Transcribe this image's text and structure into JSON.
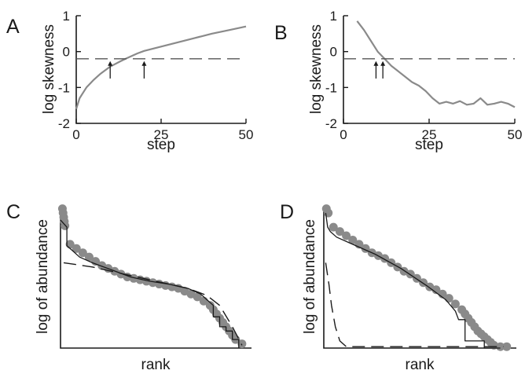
{
  "chart_data": [
    {
      "panel": "A",
      "type": "line",
      "xlabel": "step",
      "ylabel": "log skewness",
      "xlim": [
        0,
        50
      ],
      "ylim": [
        -2,
        1
      ],
      "x_ticks": [
        "0",
        "25",
        "50"
      ],
      "y_ticks": [
        "1",
        "0",
        "-1",
        "-2"
      ],
      "series": [
        {
          "style": "solid",
          "color": "#8a8a8a",
          "x": [
            0,
            1,
            2,
            3,
            5,
            7,
            10,
            13,
            15,
            18,
            20,
            25,
            30,
            35,
            40,
            45,
            50
          ],
          "y": [
            -1.6,
            -1.3,
            -1.15,
            -1.0,
            -0.8,
            -0.63,
            -0.42,
            -0.27,
            -0.18,
            -0.05,
            0.02,
            0.14,
            0.26,
            0.38,
            0.5,
            0.6,
            0.7
          ]
        },
        {
          "style": "dashed",
          "color": "#555555",
          "x": [
            0,
            50
          ],
          "y": [
            -0.2,
            -0.2
          ]
        }
      ],
      "markers": [
        {
          "type": "arrow",
          "x": 10
        },
        {
          "type": "arrow",
          "x": 20
        }
      ]
    },
    {
      "panel": "B",
      "type": "line",
      "xlabel": "step",
      "ylabel": "log skewness",
      "xlim": [
        0,
        50
      ],
      "ylim": [
        -2,
        1
      ],
      "x_ticks": [
        "0",
        "25",
        "50"
      ],
      "y_ticks": [
        "1",
        "0",
        "-1",
        "-2"
      ],
      "series": [
        {
          "style": "solid",
          "color": "#8a8a8a",
          "x": [
            4,
            6,
            8,
            10,
            12,
            14,
            16,
            18,
            20,
            22,
            24,
            26,
            28,
            30,
            32,
            34,
            36,
            38,
            40,
            42,
            44,
            46,
            48,
            50
          ],
          "y": [
            0.85,
            0.6,
            0.3,
            0.0,
            -0.2,
            -0.4,
            -0.55,
            -0.7,
            -0.85,
            -0.95,
            -1.1,
            -1.3,
            -1.45,
            -1.4,
            -1.45,
            -1.38,
            -1.48,
            -1.45,
            -1.3,
            -1.48,
            -1.45,
            -1.4,
            -1.45,
            -1.55
          ]
        },
        {
          "style": "dashed",
          "color": "#555555",
          "x": [
            0,
            50
          ],
          "y": [
            -0.2,
            -0.2
          ]
        }
      ],
      "markers": [
        {
          "type": "arrow",
          "x": 9.5
        },
        {
          "type": "arrow",
          "x": 11.5
        }
      ]
    },
    {
      "panel": "C",
      "type": "scatter",
      "xlabel": "rank",
      "ylabel": "log of abundance",
      "xlim": [
        0,
        30
      ],
      "ylim": [
        0,
        1
      ],
      "x_ticks": [],
      "y_ticks": [],
      "series": [
        {
          "style": "points",
          "color": "#8a8a8a",
          "x": [
            0.3,
            0.4,
            0.5,
            0.6,
            0.7,
            1.5,
            2.5,
            3.5,
            4.5,
            5.5,
            6.5,
            7.5,
            8.5,
            9.5,
            10.5,
            11.5,
            12.5,
            13.5,
            14.5,
            15.5,
            16.5,
            17.5,
            18.5,
            19.5,
            20.5,
            21.5,
            22.5,
            23.5,
            24,
            24.5,
            25,
            25.5,
            26,
            26.5,
            27,
            27.5,
            28.5
          ],
          "y": [
            0.98,
            0.95,
            0.92,
            0.89,
            0.86,
            0.73,
            0.7,
            0.67,
            0.64,
            0.61,
            0.58,
            0.56,
            0.54,
            0.52,
            0.5,
            0.49,
            0.48,
            0.47,
            0.46,
            0.45,
            0.44,
            0.43,
            0.42,
            0.4,
            0.38,
            0.36,
            0.33,
            0.3,
            0.27,
            0.24,
            0.21,
            0.18,
            0.15,
            0.12,
            0.09,
            0.06,
            0.03
          ]
        },
        {
          "style": "step",
          "color": "#1a1a1a",
          "x": [
            0,
            1,
            1,
            2,
            3,
            5,
            8,
            11,
            14,
            17,
            20,
            22,
            23,
            24,
            24,
            25,
            25,
            26,
            26,
            27,
            27,
            28,
            28
          ],
          "y": [
            0.9,
            0.85,
            0.72,
            0.68,
            0.64,
            0.6,
            0.55,
            0.5,
            0.47,
            0.45,
            0.42,
            0.38,
            0.34,
            0.3,
            0.22,
            0.22,
            0.15,
            0.15,
            0.12,
            0.12,
            0.06,
            0.06,
            0.0
          ]
        },
        {
          "style": "dashed",
          "color": "#1a1a1a",
          "x": [
            0.5,
            5,
            10,
            15,
            20,
            23,
            25,
            27,
            28.5
          ],
          "y": [
            0.6,
            0.57,
            0.52,
            0.47,
            0.42,
            0.37,
            0.3,
            0.15,
            0.02
          ]
        }
      ]
    },
    {
      "panel": "D",
      "type": "scatter",
      "xlabel": "rank",
      "ylabel": "log of abundance",
      "xlim": [
        0,
        30
      ],
      "ylim": [
        0,
        1
      ],
      "x_ticks": [],
      "y_ticks": [],
      "series": [
        {
          "style": "points",
          "color": "#8a8a8a",
          "x": [
            0.4,
            0.7,
            1.5,
            2.5,
            3.5,
            4.5,
            5.5,
            6.5,
            7.5,
            8.5,
            9.5,
            10.5,
            11.5,
            12.5,
            13.5,
            14.5,
            15.5,
            16.5,
            17.5,
            18.5,
            19.5,
            20.5,
            21.5,
            22,
            22.5,
            23,
            23.5,
            24,
            24.5,
            25,
            25.5,
            26,
            26.5,
            27.5,
            28.5
          ],
          "y": [
            0.98,
            0.95,
            0.85,
            0.82,
            0.79,
            0.76,
            0.73,
            0.7,
            0.67,
            0.65,
            0.63,
            0.6,
            0.57,
            0.54,
            0.52,
            0.49,
            0.46,
            0.43,
            0.41,
            0.38,
            0.35,
            0.31,
            0.27,
            0.24,
            0.21,
            0.18,
            0.15,
            0.12,
            0.1,
            0.08,
            0.06,
            0.04,
            0.02,
            0.01,
            0.01
          ]
        },
        {
          "style": "step",
          "color": "#1a1a1a",
          "x": [
            0.3,
            0.6,
            1,
            2,
            4,
            8,
            12,
            16,
            19,
            20.5,
            21,
            22,
            22,
            25,
            25,
            26,
            26,
            27.5
          ],
          "y": [
            0.95,
            0.85,
            0.82,
            0.78,
            0.74,
            0.66,
            0.56,
            0.44,
            0.34,
            0.26,
            0.2,
            0.2,
            0.05,
            0.05,
            0.0,
            0.0,
            0.0,
            0.0
          ]
        },
        {
          "style": "dashed",
          "color": "#1a1a1a",
          "x": [
            0.3,
            0.8,
            1.2,
            1.8,
            2.5,
            3.5,
            6,
            10,
            15,
            20,
            25,
            28
          ],
          "y": [
            0.6,
            0.45,
            0.3,
            0.15,
            0.05,
            0.01,
            0.01,
            0.01,
            0.01,
            0.01,
            0.01,
            0.01
          ]
        }
      ]
    }
  ]
}
